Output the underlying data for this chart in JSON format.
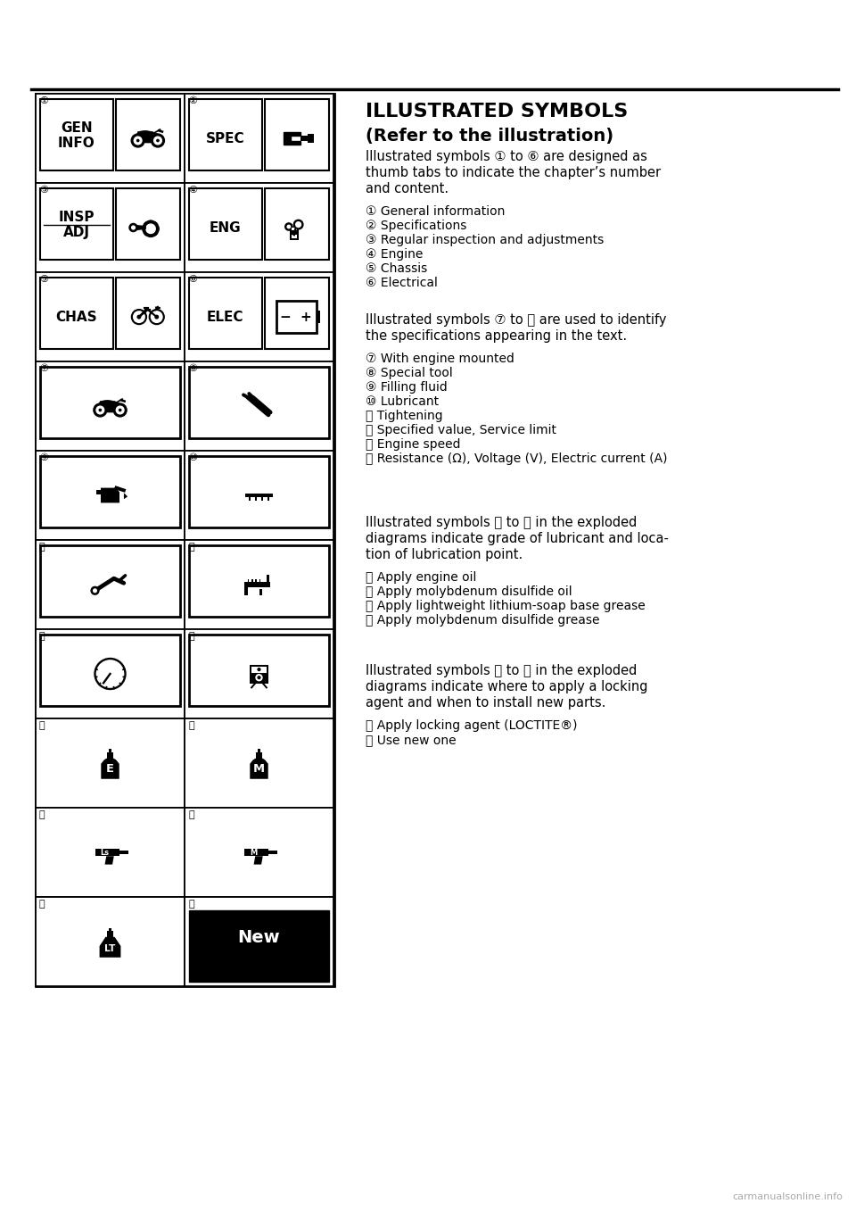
{
  "bg_color": "#ffffff",
  "title_line1": "ILLUSTRATED SYMBOLS",
  "title_line2": "(Refer to the illustration)",
  "para1_lines": [
    "Illustrated symbols ① to ⑥ are designed as",
    "thumb tabs to indicate the chapter’s number",
    "and content."
  ],
  "list1": [
    "① General information",
    "② Specifications",
    "③ Regular inspection and adjustments",
    "④ Engine",
    "⑤ Chassis",
    "⑥ Electrical"
  ],
  "para2_lines": [
    "Illustrated symbols ⑦ to ⑭ are used to identify",
    "the specifications appearing in the text."
  ],
  "list2": [
    "⑦ With engine mounted",
    "⑧ Special tool",
    "⑨ Filling fluid",
    "⑩ Lubricant",
    "⑪ Tightening",
    "⑫ Specified value, Service limit",
    "⑬ Engine speed",
    "⑭ Resistance (Ω), Voltage (V), Electric current (A)"
  ],
  "para3_lines": [
    "Illustrated symbols ⑮ to ⑱ in the exploded",
    "diagrams indicate grade of lubricant and loca-",
    "tion of lubrication point."
  ],
  "list3": [
    "⑮ Apply engine oil",
    "⑯ Apply molybdenum disulfide oil",
    "⑰ Apply lightweight lithium-soap base grease",
    "⑱ Apply molybdenum disulfide grease"
  ],
  "para4_lines": [
    "Illustrated symbols ⑲ to ⑳ in the exploded",
    "diagrams indicate where to apply a locking",
    "agent and when to install new parts."
  ],
  "list4": [
    "⑲ Apply locking agent (LOCTITE®)",
    "⑳ Use new one"
  ],
  "watermark": "carmanualsonline.info",
  "circle_nums": [
    [
      "①",
      "②"
    ],
    [
      "③",
      "④"
    ],
    [
      "⑤",
      "⑥"
    ],
    [
      "⑦",
      "⑧"
    ],
    [
      "⑨",
      "⑩"
    ],
    [
      "⑪",
      "⑫"
    ],
    [
      "⑬",
      "⑭"
    ],
    [
      "⑮",
      "⑯"
    ],
    [
      "⑰",
      "⑱"
    ],
    [
      "⑲",
      "⑳"
    ]
  ]
}
